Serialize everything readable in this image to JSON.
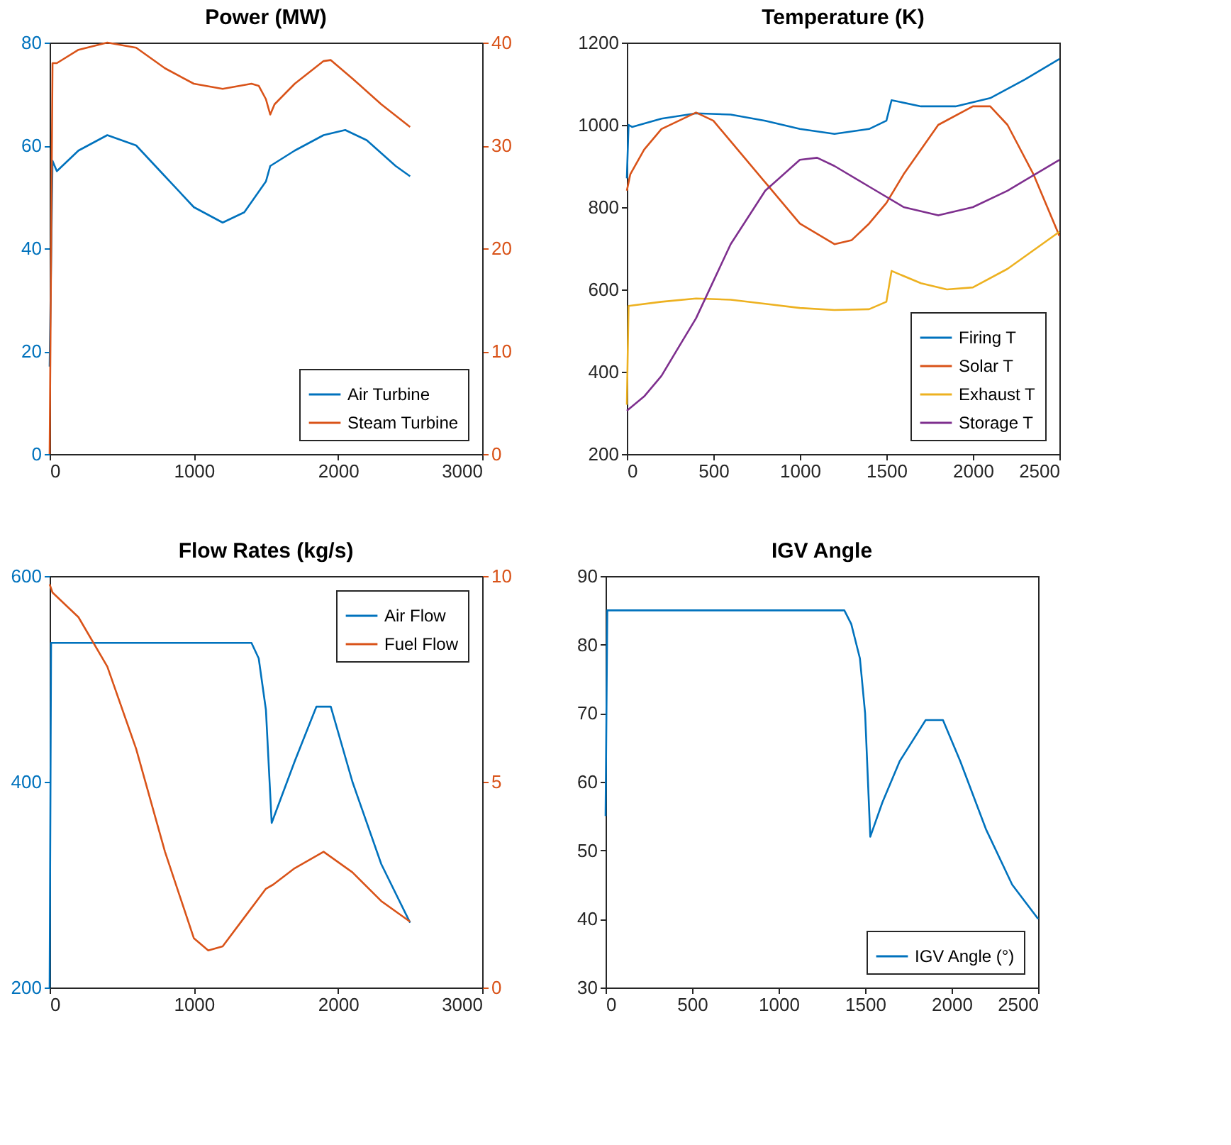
{
  "chart_data": [
    {
      "type": "line",
      "title": "Power (MW)",
      "xlim": [
        0,
        3000
      ],
      "xticks": [
        0,
        1000,
        2000,
        3000
      ],
      "ylim": [
        0,
        80
      ],
      "yticks": [
        0,
        20,
        40,
        60,
        80
      ],
      "y2lim": [
        0,
        40
      ],
      "y2ticks": [
        0,
        10,
        20,
        30,
        40
      ],
      "legend": "bottom right",
      "series": [
        {
          "name": "Air Turbine",
          "color": "#0072bd",
          "x": [
            0,
            20,
            50,
            200,
            400,
            600,
            800,
            1000,
            1200,
            1350,
            1500,
            1530,
            1700,
            1900,
            2050,
            2200,
            2400,
            2500
          ],
          "values": [
            17,
            57,
            55,
            59,
            62,
            60,
            54,
            48,
            45,
            47,
            53,
            56,
            59,
            62,
            63,
            61,
            56,
            54
          ]
        },
        {
          "name": "Steam Turbine",
          "color": "#d95319",
          "axis": "y2",
          "x": [
            0,
            20,
            50,
            200,
            400,
            600,
            800,
            1000,
            1200,
            1400,
            1450,
            1500,
            1530,
            1560,
            1700,
            1900,
            1950,
            2100,
            2300,
            2500
          ],
          "values": [
            0,
            38,
            38,
            39.3,
            40,
            39.5,
            37.5,
            36,
            35.5,
            36,
            35.8,
            34.5,
            33,
            34,
            36,
            38.2,
            38.3,
            36.5,
            34,
            31.8
          ]
        }
      ]
    },
    {
      "type": "line",
      "title": "Temperature (K)",
      "xlim": [
        0,
        2500
      ],
      "xticks": [
        0,
        500,
        1000,
        1500,
        2000,
        2500
      ],
      "ylim": [
        200,
        1200
      ],
      "yticks": [
        200,
        400,
        600,
        800,
        1000,
        1200
      ],
      "legend": "bottom right",
      "series": [
        {
          "name": "Firing T",
          "color": "#0072bd",
          "x": [
            0,
            10,
            30,
            200,
            400,
            600,
            800,
            1000,
            1200,
            1400,
            1500,
            1530,
            1700,
            1900,
            2100,
            2300,
            2500
          ],
          "values": [
            870,
            1000,
            995,
            1015,
            1028,
            1025,
            1010,
            990,
            978,
            990,
            1010,
            1060,
            1045,
            1045,
            1065,
            1110,
            1160
          ]
        },
        {
          "name": "Solar T",
          "color": "#d95319",
          "x": [
            0,
            20,
            100,
            200,
            400,
            500,
            600,
            800,
            1000,
            1200,
            1300,
            1400,
            1500,
            1600,
            1800,
            2000,
            2100,
            2200,
            2350,
            2500
          ],
          "values": [
            840,
            880,
            940,
            990,
            1030,
            1010,
            960,
            860,
            760,
            710,
            720,
            760,
            810,
            880,
            1000,
            1045,
            1045,
            1000,
            880,
            730
          ]
        },
        {
          "name": "Exhaust T",
          "color": "#edb120",
          "x": [
            0,
            10,
            200,
            400,
            600,
            800,
            1000,
            1200,
            1400,
            1500,
            1530,
            1700,
            1850,
            2000,
            2200,
            2500
          ],
          "values": [
            320,
            560,
            570,
            578,
            575,
            565,
            555,
            550,
            552,
            570,
            645,
            615,
            600,
            605,
            650,
            740
          ]
        },
        {
          "name": "Storage T",
          "color": "#7e2f8e",
          "x": [
            0,
            100,
            200,
            300,
            400,
            500,
            600,
            800,
            1000,
            1100,
            1200,
            1400,
            1600,
            1800,
            2000,
            2200,
            2400,
            2500
          ],
          "values": [
            305,
            340,
            390,
            460,
            530,
            620,
            710,
            840,
            915,
            920,
            900,
            850,
            800,
            780,
            800,
            840,
            890,
            915
          ]
        }
      ]
    },
    {
      "type": "line",
      "title": "Flow Rates (kg/s)",
      "xlim": [
        0,
        3000
      ],
      "xticks": [
        0,
        1000,
        2000,
        3000
      ],
      "ylim": [
        200,
        600
      ],
      "yticks": [
        200,
        400,
        600
      ],
      "y2lim": [
        0,
        10
      ],
      "y2ticks": [
        0,
        5,
        10
      ],
      "legend": "top right",
      "series": [
        {
          "name": "Air Flow",
          "color": "#0072bd",
          "x": [
            0,
            10,
            1400,
            1450,
            1500,
            1540,
            1700,
            1850,
            1950,
            2100,
            2300,
            2500
          ],
          "values": [
            200,
            535,
            535,
            520,
            470,
            360,
            420,
            473,
            473,
            400,
            320,
            263
          ]
        },
        {
          "name": "Fuel Flow",
          "color": "#d95319",
          "axis": "y2",
          "x": [
            0,
            20,
            200,
            400,
            600,
            800,
            1000,
            1100,
            1200,
            1350,
            1500,
            1550,
            1700,
            1900,
            2100,
            2300,
            2500
          ],
          "values": [
            9.8,
            9.6,
            9,
            7.8,
            5.8,
            3.3,
            1.2,
            0.9,
            1.0,
            1.7,
            2.4,
            2.5,
            2.9,
            3.3,
            2.8,
            2.1,
            1.6
          ]
        }
      ]
    },
    {
      "type": "line",
      "title": "IGV Angle",
      "xlim": [
        0,
        2500
      ],
      "xticks": [
        0,
        500,
        1000,
        1500,
        2000,
        2500
      ],
      "ylim": [
        30,
        90
      ],
      "yticks": [
        30,
        40,
        50,
        60,
        70,
        80,
        90
      ],
      "legend": "bottom right",
      "series": [
        {
          "name": "IGV Angle (°)",
          "color": "#0072bd",
          "x": [
            0,
            10,
            1380,
            1420,
            1470,
            1500,
            1520,
            1530,
            1600,
            1700,
            1850,
            1950,
            2050,
            2200,
            2350,
            2500
          ],
          "values": [
            55,
            85,
            85,
            83,
            78,
            70,
            58,
            52,
            57,
            63,
            69,
            69,
            63,
            53,
            45,
            40
          ]
        }
      ]
    }
  ]
}
